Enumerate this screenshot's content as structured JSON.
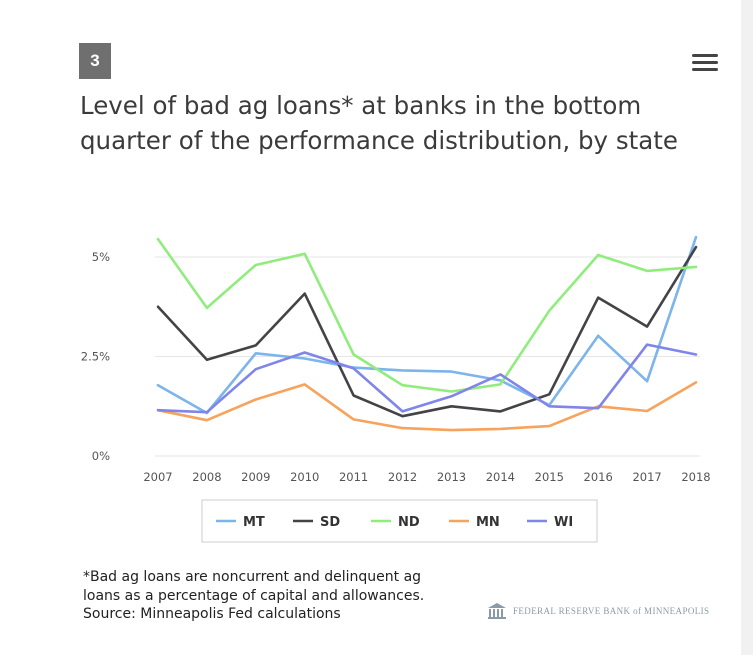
{
  "badge": "3",
  "title": "Level of bad ag loans* at banks in the bottom quarter of the performance distribution, by state",
  "footnote": [
    "*Bad ag loans are noncurrent and delinquent ag",
    "loans as a percentage of capital and allowances.",
    "Source: Minneapolis Fed calculations"
  ],
  "credit": "FEDERAL RESERVE BANK of MINNEAPOLIS",
  "icons": {
    "menu": "hamburger-menu-icon",
    "logo": "federal-reserve-building-icon"
  },
  "colors": {
    "MT": "#7cb5ec",
    "SD": "#434348",
    "ND": "#90ed7d",
    "MN": "#f7a35c",
    "WI": "#8085e9",
    "grid": "#e6e6e6",
    "axis_text": "#555555"
  },
  "chart_data": {
    "type": "line",
    "title": "Level of bad ag loans* at banks in the bottom quarter of the performance distribution, by state",
    "xlabel": "",
    "ylabel": "",
    "x": [
      2007,
      2008,
      2009,
      2010,
      2011,
      2012,
      2013,
      2014,
      2015,
      2016,
      2017,
      2018
    ],
    "ylim": [
      0,
      5.5
    ],
    "yticks": [
      0,
      2.5,
      5
    ],
    "ytick_labels": [
      "0%",
      "2.5%",
      "5%"
    ],
    "grid": true,
    "legend_position": "bottom",
    "series": [
      {
        "name": "MT",
        "values": [
          1.78,
          1.08,
          2.58,
          2.45,
          2.22,
          2.15,
          2.12,
          1.9,
          1.28,
          3.02,
          1.88,
          5.5
        ]
      },
      {
        "name": "SD",
        "values": [
          3.75,
          2.42,
          2.78,
          4.08,
          1.52,
          1.0,
          1.25,
          1.12,
          1.55,
          3.98,
          3.25,
          5.25
        ]
      },
      {
        "name": "ND",
        "values": [
          5.45,
          3.72,
          4.8,
          5.08,
          2.55,
          1.78,
          1.62,
          1.8,
          3.65,
          5.05,
          4.65,
          4.75
        ]
      },
      {
        "name": "MN",
        "values": [
          1.15,
          0.9,
          1.42,
          1.8,
          0.92,
          0.7,
          0.65,
          0.68,
          0.75,
          1.25,
          1.13,
          1.85
        ]
      },
      {
        "name": "WI",
        "values": [
          1.15,
          1.1,
          2.18,
          2.6,
          2.2,
          1.12,
          1.5,
          2.05,
          1.25,
          1.2,
          2.8,
          2.55
        ]
      }
    ]
  }
}
